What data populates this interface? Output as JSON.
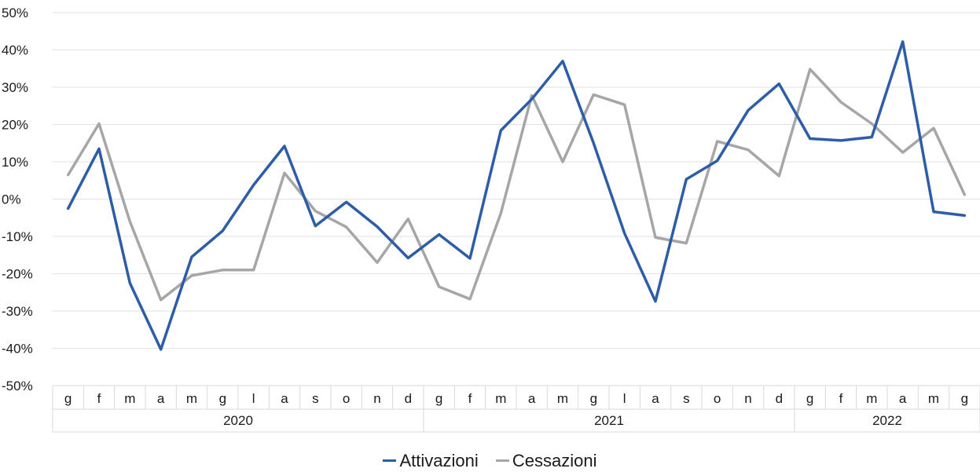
{
  "chart_data": {
    "type": "line",
    "title": "",
    "xlabel": "",
    "ylabel": "",
    "ylim": [
      -50,
      50
    ],
    "yticks": [
      "50%",
      "40%",
      "30%",
      "20%",
      "10%",
      "0%",
      "-10%",
      "-20%",
      "-30%",
      "-40%",
      "-50%"
    ],
    "grid": true,
    "legend_position": "bottom",
    "categories": [
      "g",
      "f",
      "m",
      "a",
      "m",
      "g",
      "l",
      "a",
      "s",
      "o",
      "n",
      "d",
      "g",
      "f",
      "m",
      "a",
      "m",
      "g",
      "l",
      "a",
      "s",
      "o",
      "n",
      "d",
      "g",
      "f",
      "m",
      "a",
      "m",
      "g"
    ],
    "years": [
      {
        "label": "2020",
        "months": 12
      },
      {
        "label": "2021",
        "months": 12
      },
      {
        "label": "2022",
        "months": 6
      }
    ],
    "series": [
      {
        "name": "Attivazioni",
        "color": "#2e5da8",
        "values": [
          -2.5,
          13.5,
          -22.5,
          -40.3,
          -15.5,
          -8.5,
          3.8,
          14.2,
          -7.2,
          -0.8,
          -7.4,
          -15.8,
          -9.5,
          -15.9,
          18.4,
          26.8,
          37.0,
          15.0,
          -9.2,
          -27.4,
          5.3,
          10.3,
          23.8,
          30.9,
          16.2,
          15.7,
          16.6,
          42.2,
          -3.4,
          -4.4
        ]
      },
      {
        "name": "Cessazioni",
        "color": "#a6a6a6",
        "values": [
          6.5,
          20.2,
          -6.0,
          -27.0,
          -20.5,
          -19.0,
          -19.0,
          7.0,
          -3.2,
          -7.5,
          -17.0,
          -5.3,
          -23.5,
          -26.8,
          -3.8,
          27.8,
          10.0,
          28.0,
          25.3,
          -10.3,
          -11.8,
          15.5,
          13.2,
          6.2,
          34.8,
          26.0,
          20.2,
          12.5,
          19.0,
          1.2
        ]
      }
    ]
  }
}
